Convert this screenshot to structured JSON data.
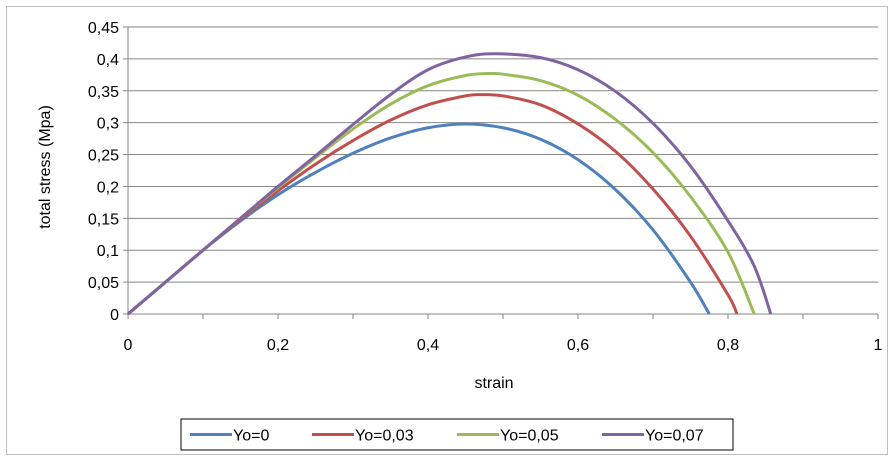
{
  "chart_data": {
    "type": "line",
    "title": "",
    "xlabel": "strain",
    "ylabel": "total stress (Mpa)",
    "xlim": [
      0,
      1
    ],
    "ylim": [
      0,
      0.45
    ],
    "x_ticks": [
      "0",
      "0,2",
      "0,4",
      "0,6",
      "0,8",
      "1"
    ],
    "x_tick_values": [
      0,
      0.2,
      0.4,
      0.6,
      0.8,
      1
    ],
    "y_ticks": [
      "0",
      "0,05",
      "0,1",
      "0,15",
      "0,2",
      "0,25",
      "0,3",
      "0,35",
      "0,4",
      "0,45"
    ],
    "y_tick_values": [
      0,
      0.05,
      0.1,
      0.15,
      0.2,
      0.25,
      0.3,
      0.35,
      0.4,
      0.45
    ],
    "grid": "horizontal",
    "legend_position": "bottom",
    "series": [
      {
        "name": "Yo=0",
        "color": "#4f81bd",
        "points": [
          [
            0,
            0
          ],
          [
            0.05,
            0.05
          ],
          [
            0.1,
            0.1
          ],
          [
            0.15,
            0.146
          ],
          [
            0.2,
            0.187
          ],
          [
            0.25,
            0.222
          ],
          [
            0.3,
            0.252
          ],
          [
            0.35,
            0.276
          ],
          [
            0.4,
            0.292
          ],
          [
            0.45,
            0.298
          ],
          [
            0.5,
            0.292
          ],
          [
            0.55,
            0.274
          ],
          [
            0.6,
            0.242
          ],
          [
            0.65,
            0.195
          ],
          [
            0.7,
            0.132
          ],
          [
            0.75,
            0.05
          ],
          [
            0.775,
            0
          ]
        ]
      },
      {
        "name": "Yo=0,03",
        "color": "#c0504d",
        "points": [
          [
            0,
            0
          ],
          [
            0.05,
            0.05
          ],
          [
            0.1,
            0.1
          ],
          [
            0.15,
            0.148
          ],
          [
            0.2,
            0.193
          ],
          [
            0.25,
            0.235
          ],
          [
            0.3,
            0.272
          ],
          [
            0.35,
            0.304
          ],
          [
            0.4,
            0.328
          ],
          [
            0.45,
            0.342
          ],
          [
            0.47,
            0.344
          ],
          [
            0.5,
            0.342
          ],
          [
            0.55,
            0.328
          ],
          [
            0.6,
            0.298
          ],
          [
            0.65,
            0.255
          ],
          [
            0.7,
            0.196
          ],
          [
            0.75,
            0.122
          ],
          [
            0.8,
            0.03
          ],
          [
            0.812,
            0
          ]
        ]
      },
      {
        "name": "Yo=0,05",
        "color": "#9bbb59",
        "points": [
          [
            0,
            0
          ],
          [
            0.05,
            0.05
          ],
          [
            0.1,
            0.1
          ],
          [
            0.15,
            0.15
          ],
          [
            0.2,
            0.198
          ],
          [
            0.25,
            0.245
          ],
          [
            0.3,
            0.29
          ],
          [
            0.35,
            0.329
          ],
          [
            0.4,
            0.358
          ],
          [
            0.45,
            0.374
          ],
          [
            0.48,
            0.377
          ],
          [
            0.5,
            0.376
          ],
          [
            0.55,
            0.366
          ],
          [
            0.6,
            0.343
          ],
          [
            0.65,
            0.305
          ],
          [
            0.7,
            0.253
          ],
          [
            0.75,
            0.184
          ],
          [
            0.8,
            0.097
          ],
          [
            0.835,
            0
          ]
        ]
      },
      {
        "name": "Yo=0,07",
        "color": "#8064a2",
        "points": [
          [
            0,
            0
          ],
          [
            0.05,
            0.05
          ],
          [
            0.1,
            0.1
          ],
          [
            0.15,
            0.15
          ],
          [
            0.2,
            0.2
          ],
          [
            0.25,
            0.248
          ],
          [
            0.3,
            0.297
          ],
          [
            0.35,
            0.344
          ],
          [
            0.4,
            0.383
          ],
          [
            0.45,
            0.403
          ],
          [
            0.49,
            0.408
          ],
          [
            0.55,
            0.402
          ],
          [
            0.6,
            0.383
          ],
          [
            0.65,
            0.349
          ],
          [
            0.7,
            0.299
          ],
          [
            0.75,
            0.232
          ],
          [
            0.8,
            0.146
          ],
          [
            0.835,
            0.075
          ],
          [
            0.857,
            0
          ]
        ]
      }
    ]
  }
}
